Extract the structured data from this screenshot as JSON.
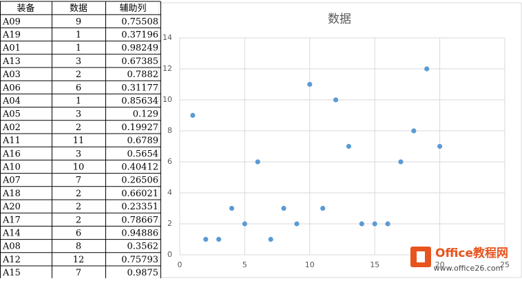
{
  "table": {
    "header": [
      "装备",
      "数据",
      "辅助列"
    ],
    "rows": [
      [
        "A09",
        9,
        0.75508
      ],
      [
        "A19",
        1,
        0.37196
      ],
      [
        "A01",
        1,
        0.98249
      ],
      [
        "A13",
        3,
        0.67385
      ],
      [
        "A03",
        2,
        0.7882
      ],
      [
        "A06",
        6,
        0.31177
      ],
      [
        "A04",
        1,
        0.85634
      ],
      [
        "A05",
        3,
        0.129
      ],
      [
        "A02",
        2,
        0.19927
      ],
      [
        "A11",
        11,
        0.6789
      ],
      [
        "A16",
        3,
        0.5654
      ],
      [
        "A10",
        10,
        0.40412
      ],
      [
        "A07",
        7,
        0.26506
      ],
      [
        "A18",
        2,
        0.66021
      ],
      [
        "A20",
        2,
        0.23351
      ],
      [
        "A17",
        2,
        0.78667
      ],
      [
        "A14",
        6,
        0.94886
      ],
      [
        "A08",
        8,
        0.3562
      ],
      [
        "A12",
        12,
        0.75793
      ],
      [
        "A15",
        7,
        0.9875
      ]
    ]
  },
  "chart_data": {
    "type": "scatter",
    "title": "数据",
    "x": [
      1,
      2,
      3,
      4,
      5,
      6,
      7,
      8,
      9,
      10,
      11,
      12,
      13,
      14,
      15,
      16,
      17,
      18,
      19,
      20
    ],
    "values": [
      9,
      1,
      1,
      3,
      2,
      6,
      1,
      3,
      2,
      11,
      3,
      10,
      7,
      2,
      2,
      2,
      6,
      8,
      12,
      7
    ],
    "color": "#5b9bd5",
    "xlim": [
      0,
      25
    ],
    "xticks": [
      0,
      5,
      10,
      15,
      20,
      25
    ],
    "ylim": [
      0,
      14
    ],
    "yticks": [
      0,
      2,
      4,
      6,
      8,
      10,
      12,
      14
    ],
    "grid": true
  },
  "watermark": {
    "brand": "Office教程网",
    "url": "www.office26.com"
  }
}
